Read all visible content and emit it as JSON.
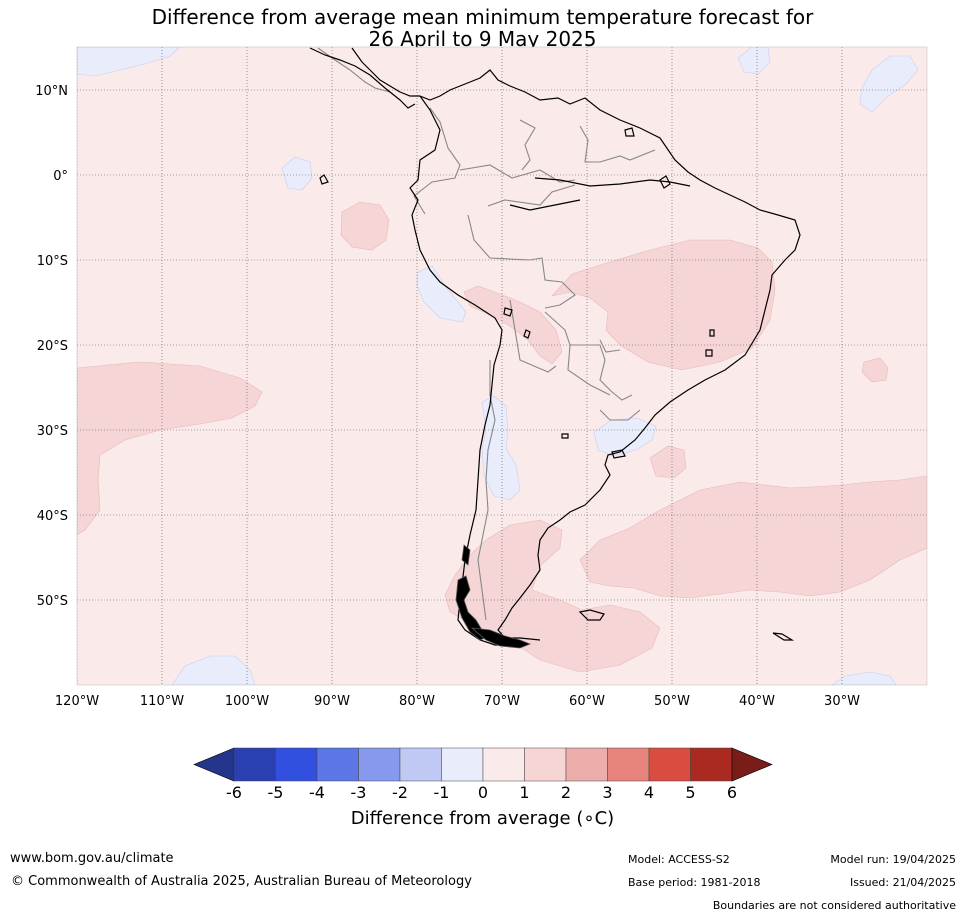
{
  "title": {
    "line1": "Difference from average mean minimum temperature forecast for",
    "line2": "26 April to 9 May 2025"
  },
  "axes": {
    "lat_labels": [
      "10°N",
      "0°",
      "10°S",
      "20°S",
      "30°S",
      "40°S",
      "50°S"
    ],
    "lon_labels": [
      "120°W",
      "110°W",
      "100°W",
      "90°W",
      "80°W",
      "70°W",
      "60°W",
      "50°W",
      "40°W",
      "30°W"
    ]
  },
  "colorbar": {
    "ticks": [
      "-6",
      "-5",
      "-4",
      "-3",
      "-2",
      "-1",
      "0",
      "1",
      "2",
      "3",
      "4",
      "5",
      "6"
    ],
    "colors": [
      "#24368c",
      "#2a3fb0",
      "#3150e0",
      "#5c76e6",
      "#8699ec",
      "#c0c8f4",
      "#e9ecfb",
      "#fbeaea",
      "#f6d5d5",
      "#ecaeab",
      "#e5837c",
      "#d94c40",
      "#aa2a22",
      "#7a1d19"
    ],
    "label": "Difference from average (∘C)"
  },
  "map": {
    "background_color": "#fbeaea",
    "warm_color": "#f5d5d5",
    "cool_color": "#e9ecfb"
  },
  "footer": {
    "url": "www.bom.gov.au/climate",
    "copyright": "© Commonwealth of Australia 2025, Australian Bureau of Meteorology",
    "model": "Model: ACCESS-S2",
    "base_period": "Base period: 1981-2018",
    "model_run": "Model run: 19/04/2025",
    "issued": "Issued: 21/04/2025",
    "boundaries": "Boundaries are not considered authoritative"
  }
}
